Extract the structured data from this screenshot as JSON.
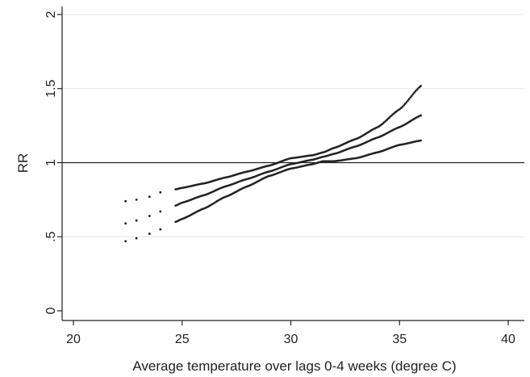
{
  "chart_data": {
    "type": "scatter",
    "title": "",
    "xlabel": "Average temperature over lags 0-4 weeks (degree C)",
    "ylabel": "RR",
    "xlim": [
      20,
      40
    ],
    "ylim": [
      0,
      2
    ],
    "xticks": [
      20,
      25,
      30,
      35,
      40
    ],
    "yticks": [
      0,
      0.5,
      1,
      1.5,
      2
    ],
    "xtick_labels": [
      "20",
      "25",
      "30",
      "35",
      "40"
    ],
    "ytick_labels": [
      "0",
      ".5",
      "1",
      "1.5",
      "2"
    ],
    "reference_line": {
      "y": 1
    },
    "grid": true,
    "legend": "none",
    "colors": {
      "points": "#222222",
      "grid": "#e6e6e6",
      "axis": "#222222",
      "reference": "#222222"
    },
    "series": [
      {
        "role": "upper",
        "x": [
          22.4,
          22.9,
          23.5,
          24.0,
          24.7,
          25.0,
          26.0,
          27.0,
          28.0,
          29.0,
          30.0,
          31.0,
          31.5,
          32.0,
          33.0,
          34.0,
          35.0,
          36.0
        ],
        "y": [
          0.74,
          0.75,
          0.77,
          0.8,
          0.82,
          0.83,
          0.86,
          0.9,
          0.94,
          0.98,
          1.03,
          1.05,
          1.07,
          1.1,
          1.16,
          1.24,
          1.36,
          1.52
        ]
      },
      {
        "role": "estimate",
        "x": [
          22.4,
          22.9,
          23.5,
          24.0,
          24.7,
          25.0,
          26.0,
          27.0,
          28.0,
          29.0,
          30.0,
          31.0,
          31.5,
          32.0,
          33.0,
          34.0,
          35.0,
          36.0
        ],
        "y": [
          0.59,
          0.61,
          0.64,
          0.67,
          0.71,
          0.73,
          0.78,
          0.84,
          0.89,
          0.94,
          0.99,
          1.02,
          1.04,
          1.06,
          1.11,
          1.17,
          1.24,
          1.32
        ]
      },
      {
        "role": "lower",
        "x": [
          22.4,
          22.9,
          23.5,
          24.0,
          24.7,
          25.0,
          26.0,
          27.0,
          28.0,
          29.0,
          30.0,
          31.0,
          31.5,
          32.0,
          33.0,
          34.0,
          35.0,
          36.0
        ],
        "y": [
          0.47,
          0.49,
          0.52,
          0.55,
          0.6,
          0.62,
          0.69,
          0.77,
          0.84,
          0.91,
          0.96,
          0.99,
          1.01,
          1.01,
          1.03,
          1.07,
          1.12,
          1.15
        ]
      }
    ]
  }
}
